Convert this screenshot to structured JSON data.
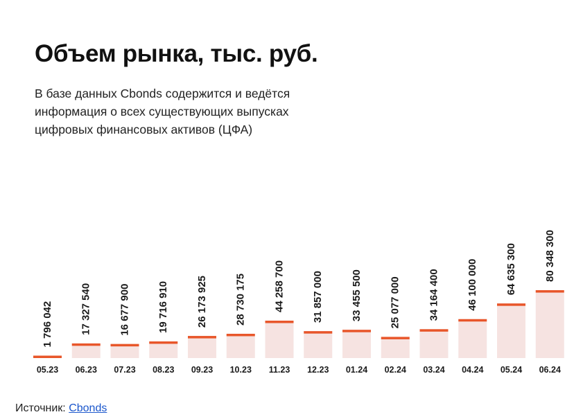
{
  "header": {
    "title": "Объем рынка, тыс. руб.",
    "subtitle": "В базе данных Cbonds содержится и ведётся информация о всех существующих выпусках цифровых финансовых активов (ЦФА)"
  },
  "footer": {
    "source_label": "Источник: ",
    "source_link": "Cbonds"
  },
  "colors": {
    "bar_fill": "#f6e3e1",
    "bar_cap": "#e8562a"
  },
  "chart_data": {
    "type": "bar",
    "title": "Объем рынка, тыс. руб.",
    "xlabel": "",
    "ylabel": "",
    "ylim": [
      0,
      80348300
    ],
    "grid": false,
    "categories": [
      "05.23",
      "06.23",
      "07.23",
      "08.23",
      "09.23",
      "10.23",
      "11.23",
      "12.23",
      "01.24",
      "02.24",
      "03.24",
      "04.24",
      "05.24",
      "06.24"
    ],
    "values": [
      1796042,
      17327540,
      16677900,
      19716910,
      26173925,
      28730175,
      44258700,
      31857000,
      33455500,
      25077000,
      34164400,
      46100000,
      64635300,
      80348300
    ],
    "value_labels": [
      "1 796 042",
      "17 327 540",
      "16 677 900",
      "19 716 910",
      "26 173 925",
      "28 730 175",
      "44 258 700",
      "31 857 000",
      "33 455 500",
      "25 077 000",
      "34 164 400",
      "46 100 000",
      "64 635 300",
      "80 348 300"
    ]
  }
}
